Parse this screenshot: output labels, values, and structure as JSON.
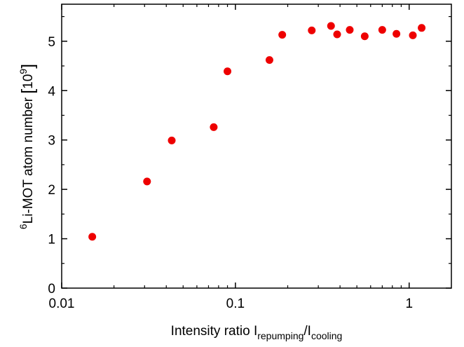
{
  "chart_data": {
    "type": "scatter",
    "x_scale": "log",
    "xlim": [
      0.01,
      1.75
    ],
    "ylim": [
      0,
      5.75
    ],
    "x_ticks": [
      {
        "value": 0.01,
        "label": "0.01"
      },
      {
        "value": 0.1,
        "label": "0.1"
      },
      {
        "value": 1,
        "label": "1"
      }
    ],
    "y_ticks": [
      {
        "value": 0,
        "label": "0"
      },
      {
        "value": 1,
        "label": "1"
      },
      {
        "value": 2,
        "label": "2"
      },
      {
        "value": 3,
        "label": "3"
      },
      {
        "value": 4,
        "label": "4"
      },
      {
        "value": 5,
        "label": "5"
      }
    ],
    "xlabel": {
      "text": "Intensity ratio I",
      "sub1": "repumping",
      "mid": "/I",
      "sub2": "cooling"
    },
    "ylabel": {
      "sup": "6",
      "text": "Li-MOT atom number ",
      "bracket_open": "[",
      "base": "10",
      "exp": "9",
      "bracket_close": "]"
    },
    "grid": false,
    "marker_color": "#ee0000",
    "points": [
      {
        "x": 0.015,
        "y": 1.04
      },
      {
        "x": 0.031,
        "y": 2.16
      },
      {
        "x": 0.043,
        "y": 2.99
      },
      {
        "x": 0.075,
        "y": 3.26
      },
      {
        "x": 0.09,
        "y": 4.39
      },
      {
        "x": 0.157,
        "y": 4.62
      },
      {
        "x": 0.186,
        "y": 5.13
      },
      {
        "x": 0.275,
        "y": 5.22
      },
      {
        "x": 0.355,
        "y": 5.31
      },
      {
        "x": 0.385,
        "y": 5.14
      },
      {
        "x": 0.455,
        "y": 5.23
      },
      {
        "x": 0.555,
        "y": 5.1
      },
      {
        "x": 0.7,
        "y": 5.23
      },
      {
        "x": 0.845,
        "y": 5.15
      },
      {
        "x": 1.05,
        "y": 5.12
      },
      {
        "x": 1.18,
        "y": 5.27
      }
    ]
  }
}
